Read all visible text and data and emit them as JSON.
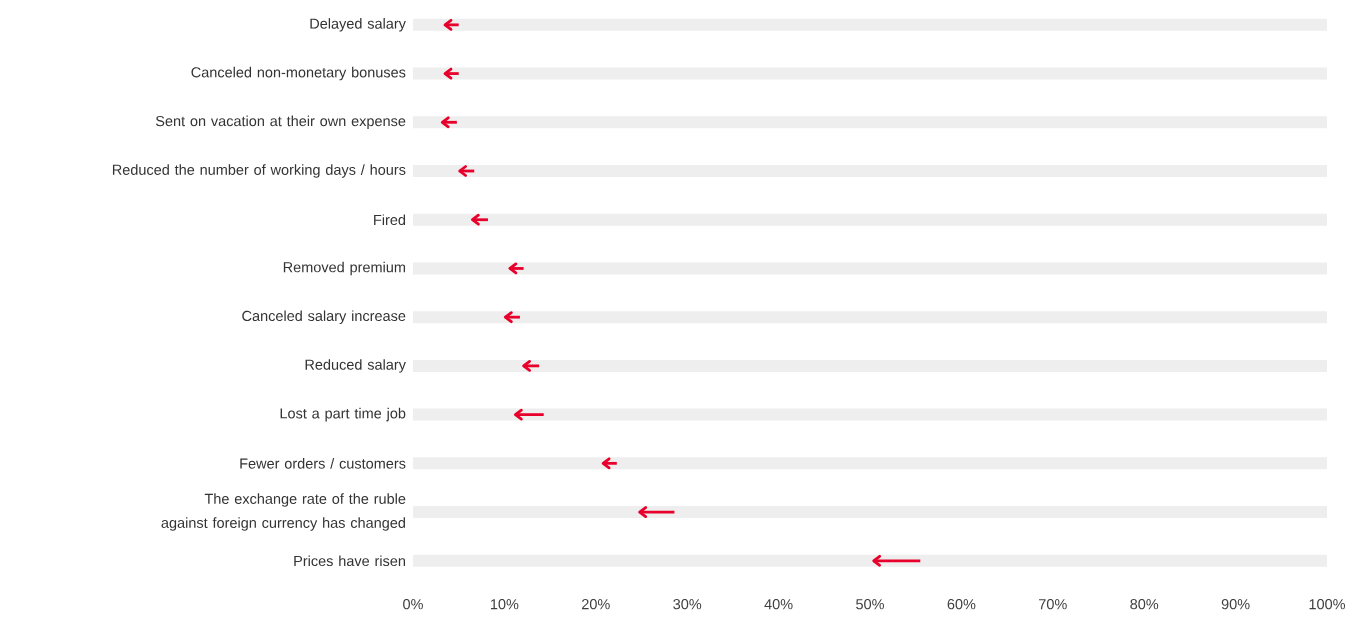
{
  "chart_data": {
    "type": "bar",
    "orientation": "horizontal",
    "categories": [
      "Delayed salary",
      "Canceled non-monetary bonuses",
      "Sent on vacation at their own expense",
      "Reduced the number of working days / hours",
      "Fired",
      "Removed premium",
      "Canceled salary increase",
      "Reduced salary",
      "Lost a part time job",
      "Fewer orders / customers",
      "The exchange rate of the ruble against foreign currency has changed",
      "Prices have risen"
    ],
    "series": [
      {
        "color": "#eeeeee",
        "values": [
          100,
          100,
          100,
          100,
          100,
          100,
          100,
          100,
          100,
          100,
          100,
          100
        ]
      },
      {
        "color": "#e8002d",
        "base": [
          5.0,
          5.0,
          4.8,
          6.7,
          8.2,
          12.1,
          11.7,
          13.8,
          14.3,
          22.3,
          28.6,
          55.5
        ],
        "values": [
          -1.5,
          -1.5,
          -1.6,
          -1.6,
          -1.7,
          -1.5,
          -1.6,
          -1.7,
          -3.1,
          -1.5,
          -3.8,
          -5.1
        ]
      }
    ],
    "xlim": [
      0,
      100
    ],
    "xticks": [
      {
        "value": 0,
        "label": "0%"
      },
      {
        "value": 10,
        "label": "10%"
      },
      {
        "value": 20,
        "label": "20%"
      },
      {
        "value": 30,
        "label": "30%"
      },
      {
        "value": 40,
        "label": "40%"
      },
      {
        "value": 50,
        "label": "50%"
      },
      {
        "value": 60,
        "label": "60%"
      },
      {
        "value": 70,
        "label": "70%"
      },
      {
        "value": 80,
        "label": "80%"
      },
      {
        "value": 90,
        "label": "90%"
      },
      {
        "value": 100,
        "label": "100%"
      }
    ],
    "grid": false
  }
}
